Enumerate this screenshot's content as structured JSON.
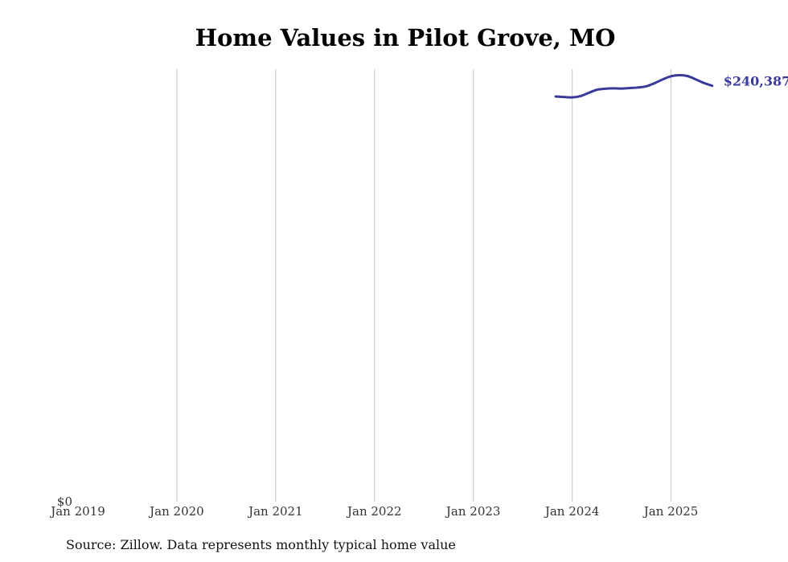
{
  "chart_data": {
    "type": "line",
    "title": "Home Values in Pilot Grove, MO",
    "xlabel": "",
    "ylabel": "",
    "x_ticks": [
      "Jan 2019",
      "Jan 2020",
      "Jan 2021",
      "Jan 2022",
      "Jan 2023",
      "Jan 2024",
      "Jan 2025"
    ],
    "y_ticks": [
      "$0"
    ],
    "xlim": [
      "2019-01",
      "2025-11"
    ],
    "ylim": [
      0,
      250000
    ],
    "grid": "vertical",
    "series": [
      {
        "color": "#3a3a9b",
        "end_label": "$240,387",
        "points": [
          {
            "x": "2023-11",
            "y": 234200
          },
          {
            "x": "2023-12",
            "y": 233900
          },
          {
            "x": "2024-01",
            "y": 233700
          },
          {
            "x": "2024-02",
            "y": 234400
          },
          {
            "x": "2024-03",
            "y": 236300
          },
          {
            "x": "2024-04",
            "y": 238100
          },
          {
            "x": "2024-05",
            "y": 238700
          },
          {
            "x": "2024-06",
            "y": 238900
          },
          {
            "x": "2024-07",
            "y": 238800
          },
          {
            "x": "2024-08",
            "y": 239100
          },
          {
            "x": "2024-09",
            "y": 239400
          },
          {
            "x": "2024-10",
            "y": 240100
          },
          {
            "x": "2024-11",
            "y": 241900
          },
          {
            "x": "2024-12",
            "y": 244100
          },
          {
            "x": "2025-01",
            "y": 245900
          },
          {
            "x": "2025-02",
            "y": 246500
          },
          {
            "x": "2025-03",
            "y": 246000
          },
          {
            "x": "2025-04",
            "y": 244100
          },
          {
            "x": "2025-05",
            "y": 242000
          },
          {
            "x": "2025-06",
            "y": 240387
          }
        ]
      }
    ]
  },
  "source": "Source: Zillow. Data represents monthly typical home value"
}
